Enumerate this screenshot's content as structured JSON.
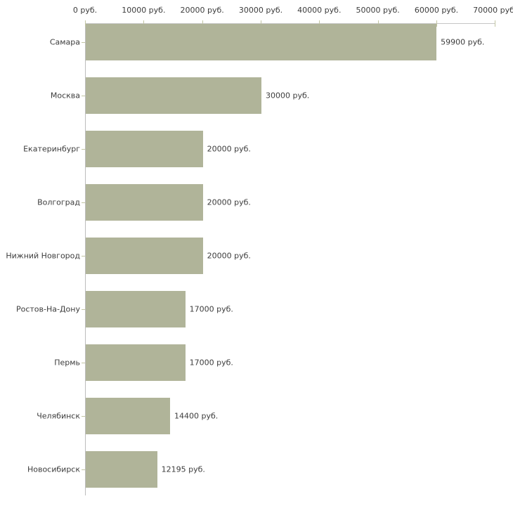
{
  "chart_data": {
    "type": "bar",
    "orientation": "horizontal",
    "title": "",
    "categories": [
      "Самара",
      "Москва",
      "Екатеринбург",
      "Волгоград",
      "Нижний Новгород",
      "Ростов-На-Дону",
      "Пермь",
      "Челябинск",
      "Новосибирск"
    ],
    "values": [
      59900,
      30000,
      20000,
      20000,
      20000,
      17000,
      17000,
      14400,
      12195
    ],
    "value_labels": [
      "59900 руб.",
      "30000 руб.",
      "20000 руб.",
      "20000 руб.",
      "20000 руб.",
      "17000 руб.",
      "17000 руб.",
      "14400 руб.",
      "12195 руб."
    ],
    "x_tick_labels": [
      "0 руб.",
      "10000 руб.",
      "20000 руб.",
      "30000 руб.",
      "40000 руб.",
      "50000 руб.",
      "60000 руб.",
      "70000 руб."
    ],
    "x_tick_values": [
      0,
      10000,
      20000,
      30000,
      40000,
      50000,
      60000,
      70000
    ],
    "xlim": [
      0,
      70000
    ],
    "unit": "руб.",
    "xlabel": "",
    "ylabel": "",
    "grid": false,
    "legend": false,
    "colors": {
      "bar_fill": "#b0b499",
      "x_axis_line": "#c6c6c6",
      "y_axis_line": "#bdbdbd",
      "tick_mark": "#c2c5a3",
      "text": "#3c3c3c",
      "background": "#ffffff"
    }
  }
}
